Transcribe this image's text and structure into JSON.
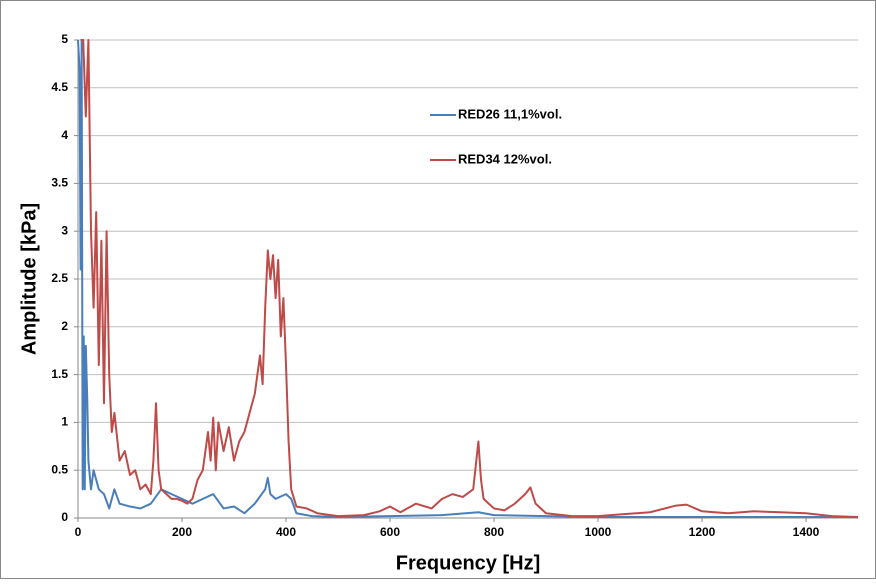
{
  "chart_data": {
    "type": "line",
    "x_label": "Frequency [Hz]",
    "y_label": "Amplitude [kPa]",
    "xlim": [
      0,
      1500
    ],
    "xticks": [
      0,
      200,
      400,
      600,
      800,
      1000,
      1200,
      1400
    ],
    "ylim": [
      0,
      5
    ],
    "yticks": [
      0,
      0.5,
      1,
      1.5,
      2,
      2.5,
      3,
      3.5,
      4,
      4.5,
      5
    ],
    "grid": true,
    "legend": "top-center",
    "series": [
      {
        "name": "RED26 11,1%vol.",
        "color": "#4a7ebb",
        "x": [
          0,
          3,
          5,
          7,
          9,
          11,
          13,
          15,
          18,
          20,
          25,
          30,
          40,
          50,
          60,
          70,
          80,
          100,
          120,
          140,
          160,
          180,
          200,
          220,
          240,
          260,
          280,
          300,
          320,
          340,
          360,
          365,
          370,
          380,
          400,
          410,
          420,
          450,
          500,
          600,
          700,
          770,
          800,
          900,
          1000,
          1200,
          1500
        ],
        "values": [
          5,
          4.7,
          2.6,
          5,
          0.3,
          1.9,
          0.3,
          1.8,
          1.2,
          0.6,
          0.3,
          0.5,
          0.3,
          0.25,
          0.1,
          0.3,
          0.15,
          0.12,
          0.1,
          0.15,
          0.3,
          0.25,
          0.2,
          0.15,
          0.2,
          0.25,
          0.1,
          0.12,
          0.05,
          0.15,
          0.3,
          0.42,
          0.25,
          0.2,
          0.25,
          0.2,
          0.05,
          0.02,
          0.01,
          0.02,
          0.03,
          0.06,
          0.03,
          0.02,
          0.01,
          0.01,
          0.01
        ]
      },
      {
        "name": "RED34 12%vol.",
        "color": "#be4b48",
        "x": [
          5,
          10,
          15,
          20,
          25,
          30,
          35,
          40,
          45,
          50,
          55,
          60,
          65,
          70,
          80,
          90,
          100,
          110,
          120,
          130,
          140,
          145,
          150,
          155,
          160,
          170,
          180,
          190,
          200,
          210,
          220,
          230,
          240,
          250,
          255,
          260,
          265,
          270,
          280,
          290,
          300,
          310,
          320,
          330,
          340,
          350,
          355,
          360,
          365,
          370,
          375,
          380,
          385,
          390,
          395,
          400,
          405,
          410,
          420,
          440,
          460,
          500,
          550,
          580,
          600,
          620,
          650,
          680,
          700,
          720,
          740,
          760,
          770,
          775,
          780,
          800,
          820,
          840,
          860,
          870,
          880,
          900,
          950,
          1000,
          1050,
          1100,
          1150,
          1170,
          1200,
          1250,
          1300,
          1350,
          1400,
          1450,
          1500
        ],
        "values": [
          5,
          5,
          4.2,
          5,
          3,
          2.2,
          3.2,
          1.6,
          2.9,
          1.2,
          3,
          1.5,
          0.9,
          1.1,
          0.6,
          0.7,
          0.45,
          0.5,
          0.3,
          0.35,
          0.25,
          0.6,
          1.2,
          0.5,
          0.3,
          0.25,
          0.2,
          0.2,
          0.18,
          0.15,
          0.2,
          0.4,
          0.5,
          0.9,
          0.6,
          1.05,
          0.5,
          1,
          0.7,
          0.95,
          0.6,
          0.8,
          0.9,
          1.1,
          1.3,
          1.7,
          1.4,
          2.2,
          2.8,
          2.5,
          2.75,
          2.3,
          2.7,
          1.9,
          2.3,
          1.6,
          0.8,
          0.3,
          0.12,
          0.1,
          0.05,
          0.02,
          0.03,
          0.07,
          0.12,
          0.06,
          0.15,
          0.1,
          0.2,
          0.25,
          0.22,
          0.3,
          0.8,
          0.4,
          0.2,
          0.1,
          0.08,
          0.15,
          0.25,
          0.32,
          0.15,
          0.05,
          0.02,
          0.02,
          0.04,
          0.06,
          0.13,
          0.14,
          0.07,
          0.05,
          0.07,
          0.06,
          0.05,
          0.02,
          0.01
        ]
      }
    ]
  }
}
